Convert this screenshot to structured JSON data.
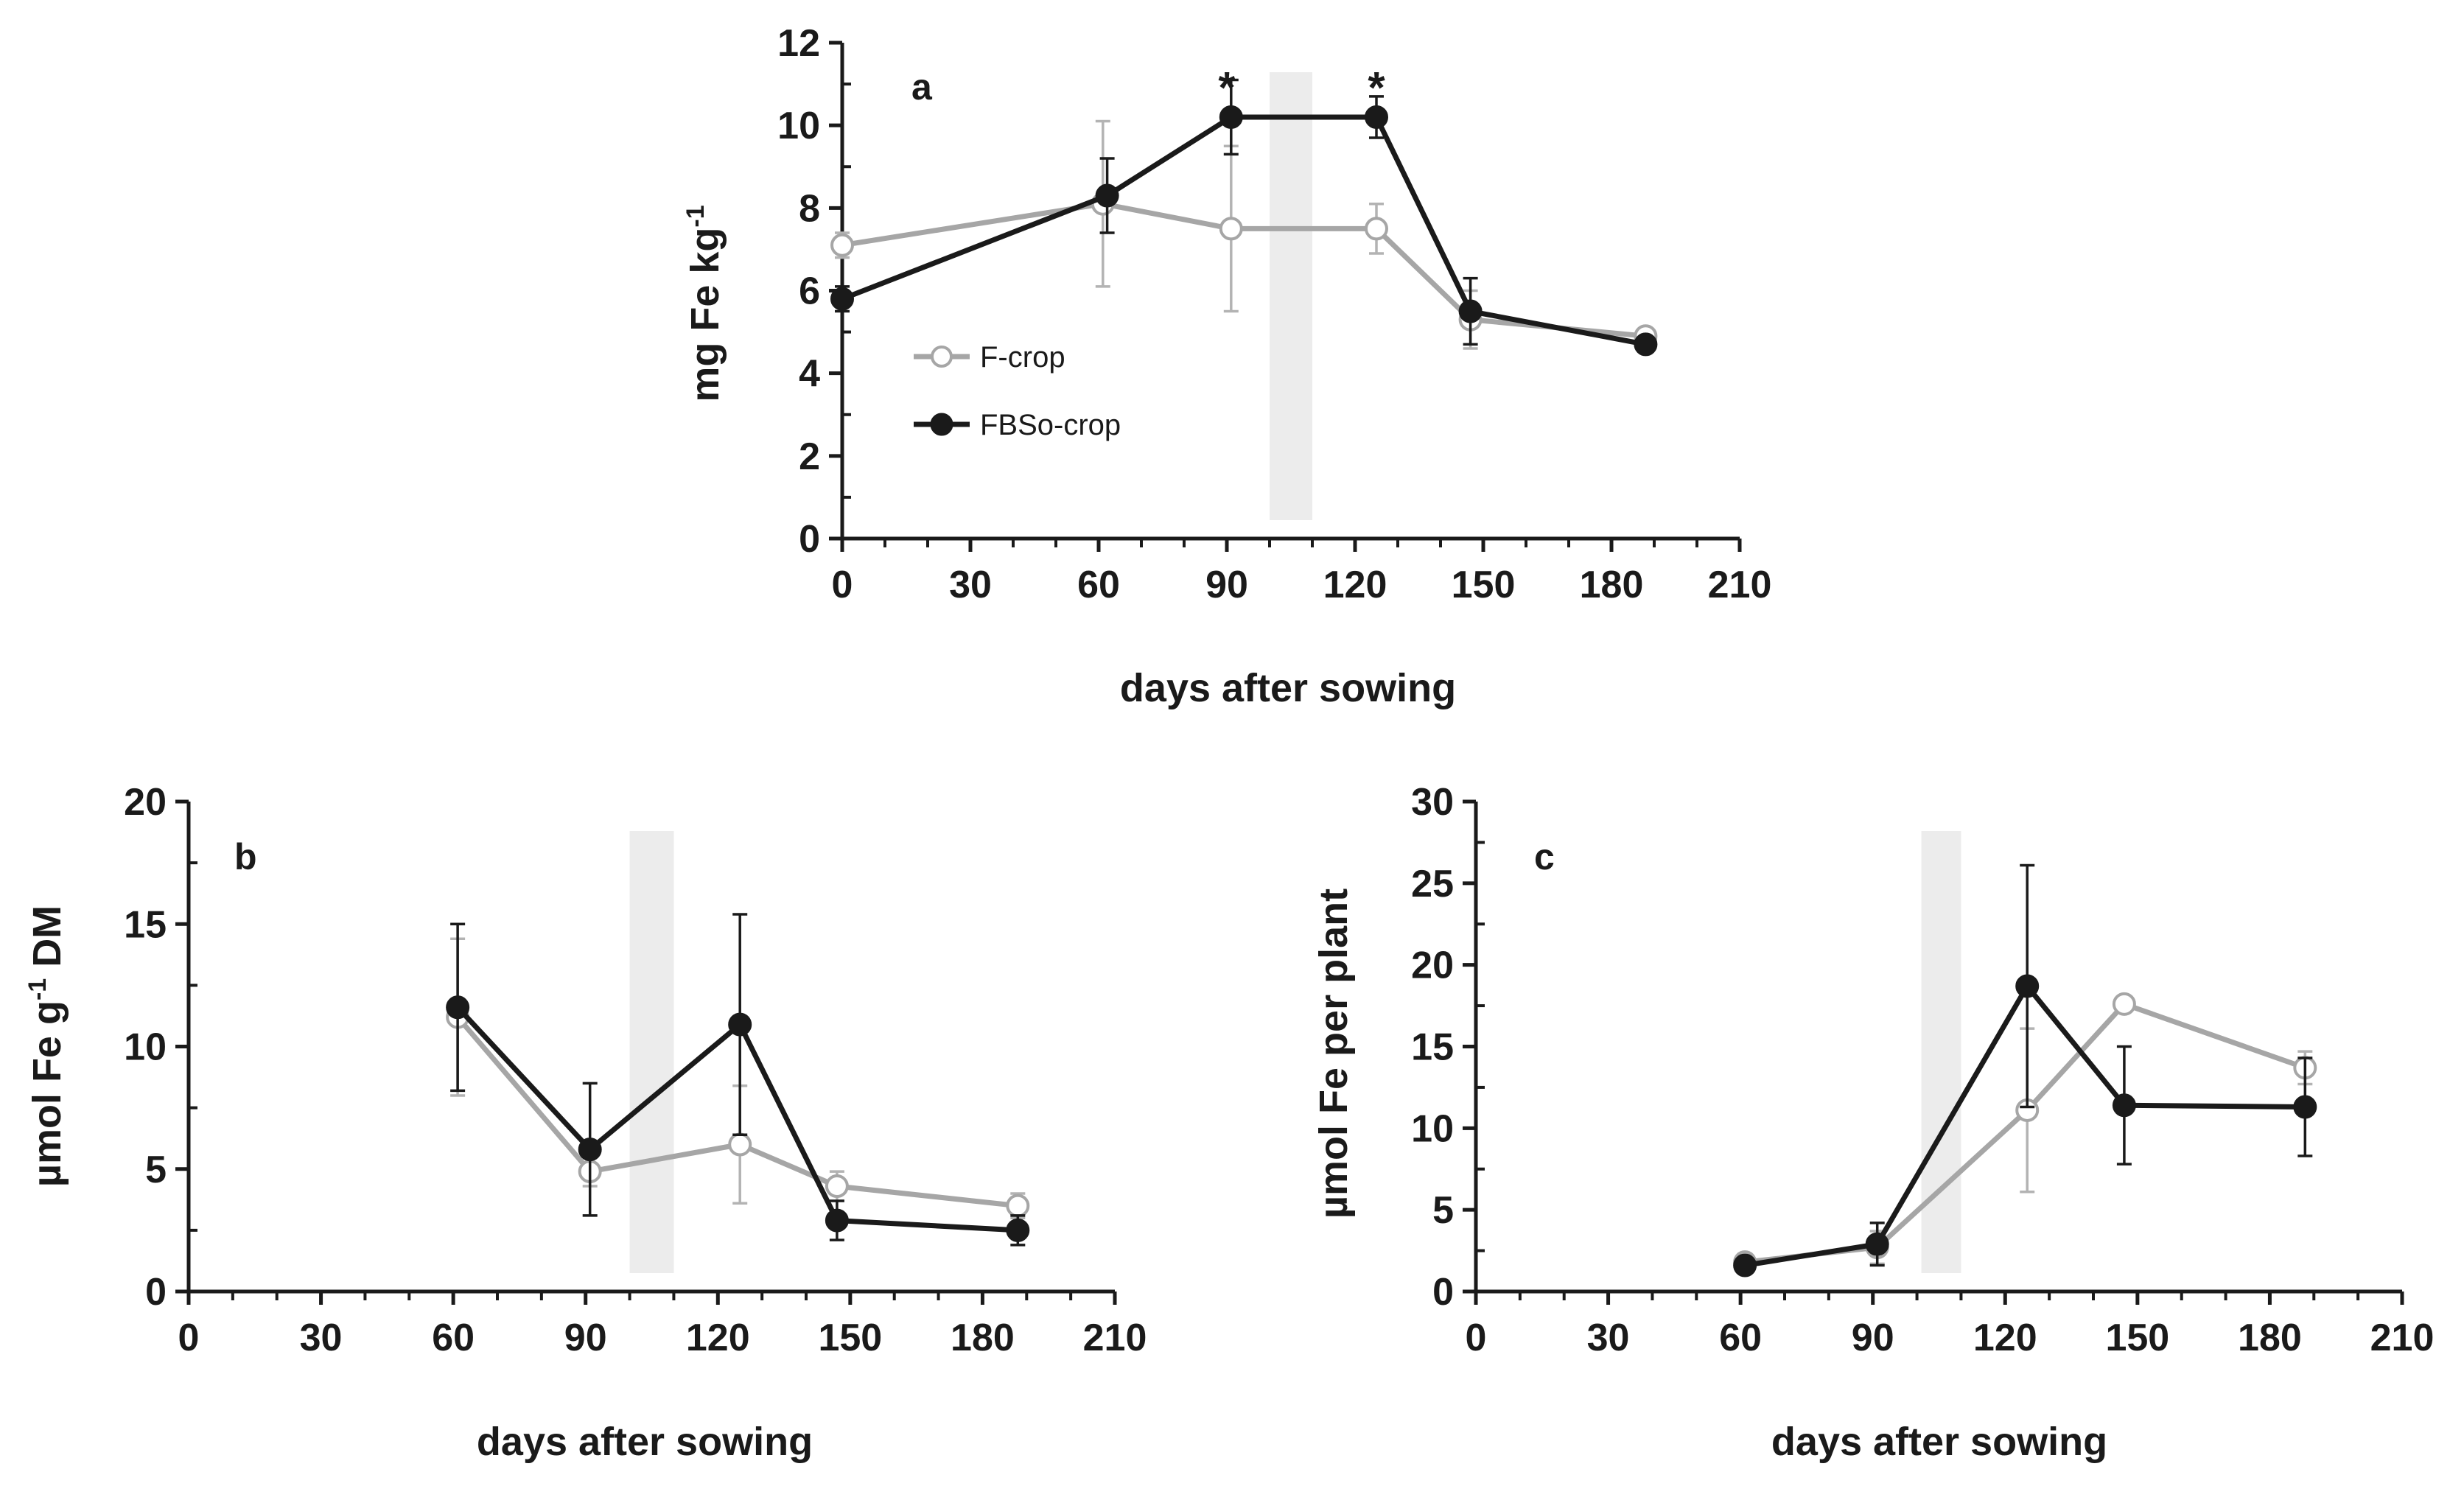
{
  "chart_data": [
    {
      "type": "line",
      "panel": "a",
      "xlabel": "days after sowing",
      "ylabel": "mg Fe  kg",
      "ylabel_sup": "-1",
      "xlim": [
        0,
        210
      ],
      "ylim": [
        0,
        12
      ],
      "xticks": [
        0,
        30,
        60,
        90,
        120,
        150,
        180,
        210
      ],
      "yticks": [
        0,
        2,
        4,
        6,
        8,
        10,
        12
      ],
      "ytick_labels": [
        "0",
        "2",
        "4",
        "6",
        "8",
        "10",
        "12"
      ],
      "shaded_band": [
        100,
        110
      ],
      "legend": {
        "position": "center-left",
        "show": true
      },
      "annotations": [
        {
          "text": "*",
          "x": 90,
          "y": 10.9
        },
        {
          "text": "*",
          "x": 125,
          "y": 10.9
        }
      ],
      "series": [
        {
          "name": "F-crop",
          "color": "#a6a6a6",
          "marker": "open",
          "x": [
            0,
            61,
            91,
            125,
            147,
            188
          ],
          "y": [
            7.1,
            8.1,
            7.5,
            7.5,
            5.3,
            4.9
          ],
          "err": [
            0.3,
            2.0,
            2.0,
            0.6,
            0.7,
            0.1
          ]
        },
        {
          "name": "FBSo-crop",
          "color": "#1a1a1a",
          "marker": "filled",
          "x": [
            0,
            62,
            91,
            125,
            147,
            188
          ],
          "y": [
            5.8,
            8.3,
            10.2,
            10.2,
            5.5,
            4.7
          ],
          "err": [
            0.3,
            0.9,
            0.9,
            0.5,
            0.8,
            0.1
          ]
        }
      ]
    },
    {
      "type": "line",
      "panel": "b",
      "xlabel": "days after sowing",
      "ylabel": "µmol Fe  g",
      "ylabel_sup": "-1",
      "ylabel_suffix": " DM",
      "xlim": [
        0,
        210
      ],
      "ylim": [
        0,
        20
      ],
      "xticks": [
        0,
        30,
        60,
        90,
        120,
        150,
        180,
        210
      ],
      "yticks": [
        0,
        5,
        10,
        15,
        20
      ],
      "ytick_labels": [
        "0",
        "5",
        "10",
        "15",
        "20"
      ],
      "shaded_band": [
        100,
        110
      ],
      "legend": {
        "show": false
      },
      "annotations": [],
      "series": [
        {
          "name": "F-crop",
          "color": "#a6a6a6",
          "marker": "open",
          "x": [
            61,
            91,
            125,
            147,
            188
          ],
          "y": [
            11.2,
            4.9,
            6.0,
            4.3,
            3.5
          ],
          "err": [
            3.2,
            0.6,
            2.4,
            0.6,
            0.5
          ]
        },
        {
          "name": "FBSo-crop",
          "color": "#1a1a1a",
          "marker": "filled",
          "x": [
            61,
            91,
            125,
            147,
            188
          ],
          "y": [
            11.6,
            5.8,
            10.9,
            2.9,
            2.5
          ],
          "err": [
            3.4,
            2.7,
            4.5,
            0.8,
            0.6
          ]
        }
      ]
    },
    {
      "type": "line",
      "panel": "c",
      "xlabel": "days after sowing",
      "ylabel": "µmol Fe  per plant",
      "xlim": [
        0,
        210
      ],
      "ylim": [
        0,
        30
      ],
      "xticks": [
        0,
        30,
        60,
        90,
        120,
        150,
        180,
        210
      ],
      "yticks": [
        0,
        5,
        10,
        15,
        20,
        25,
        30
      ],
      "ytick_labels": [
        "0",
        "5",
        "10",
        "15",
        "20",
        "25",
        "30"
      ],
      "shaded_band": [
        101,
        110
      ],
      "legend": {
        "show": false
      },
      "annotations": [],
      "series": [
        {
          "name": "F-crop",
          "color": "#a6a6a6",
          "marker": "open",
          "x": [
            61,
            91,
            125,
            147,
            188
          ],
          "y": [
            1.8,
            2.7,
            11.1,
            17.6,
            13.7
          ],
          "err": [
            0.5,
            1.0,
            5.0,
            0.4,
            1.0
          ]
        },
        {
          "name": "FBSo-crop",
          "color": "#1a1a1a",
          "marker": "filled",
          "x": [
            61,
            91,
            125,
            147,
            188
          ],
          "y": [
            1.6,
            2.9,
            18.7,
            11.4,
            11.3
          ],
          "err": [
            0.4,
            1.3,
            7.4,
            3.6,
            3.0
          ]
        }
      ]
    }
  ]
}
